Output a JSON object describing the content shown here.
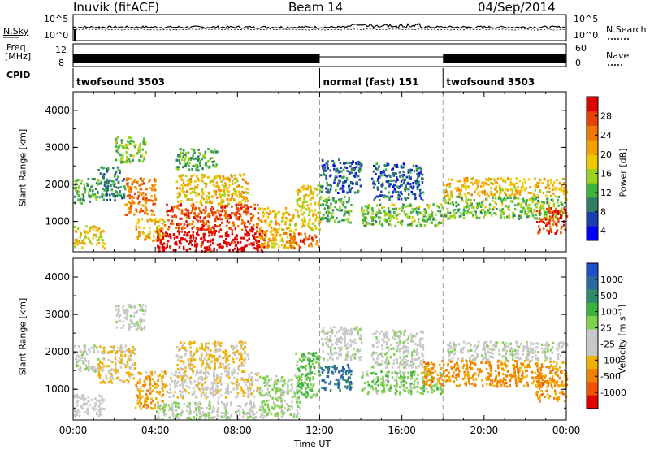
{
  "header": {
    "station": "Inuvik (fitACF)",
    "beam": "Beam 14",
    "date": "04/Sep/2014"
  },
  "noise_panel": {
    "left_label": "N.Sky",
    "right_label": "N.Search",
    "left_ticks": [
      "10^5",
      "10^0"
    ],
    "right_ticks": [
      "10^5",
      "10^0"
    ]
  },
  "freq_panel": {
    "left_label_1": "Freq.",
    "left_label_2": "[MHz]",
    "right_label": "Nave",
    "left_ticks": [
      "12",
      "8"
    ],
    "right_ticks": [
      "60",
      "0"
    ]
  },
  "cpid_panel": {
    "label": "CPID",
    "segments": [
      {
        "name": "twofsound 3503",
        "start_hr": 0,
        "end_hr": 12
      },
      {
        "name": "normal (fast) 151",
        "start_hr": 12,
        "end_hr": 18
      },
      {
        "name": "twofsound 3503",
        "start_hr": 18,
        "end_hr": 24
      }
    ]
  },
  "power_panel": {
    "ylabel": "Slant Range [km]",
    "yticks": [
      "4000",
      "3000",
      "2000",
      "1000"
    ],
    "colorbar_label": "Power [dB]",
    "colorbar_ticks": [
      "28",
      "24",
      "20",
      "16",
      "12",
      "8",
      "4"
    ],
    "colors": [
      "#0000ff",
      "#1a3fb0",
      "#2f7d65",
      "#3cb43c",
      "#9bd21e",
      "#f0c800",
      "#f5a000",
      "#f07800",
      "#e64100",
      "#e00000"
    ]
  },
  "velocity_panel": {
    "ylabel": "Slant Range [km]",
    "yticks": [
      "4000",
      "3000",
      "2000",
      "1000"
    ],
    "colorbar_label": "Velocity [m s⁻¹]",
    "colorbar_ticks": [
      "1000",
      "500",
      "100",
      "25",
      "-25",
      "-100",
      "-500",
      "-1000"
    ],
    "colors": [
      "#1e50c8",
      "#2a6aa0",
      "#2e8b6e",
      "#3cb43c",
      "#80d050",
      "#c8c8c8",
      "#c8c8c8",
      "#f0b000",
      "#f08000",
      "#f05000",
      "#e00000"
    ]
  },
  "x_axis": {
    "ticks": [
      "00:00",
      "04:00",
      "08:00",
      "12:00",
      "16:00",
      "20:00",
      "00:00"
    ],
    "label": "Time UT"
  },
  "chart_data": {
    "type": "heatmap",
    "title": "Inuvik (fitACF)  Beam 14  04/Sep/2014",
    "xlabel": "Time UT",
    "ylabel": "Slant Range [km]",
    "xlim": [
      0,
      24
    ],
    "ylim": [
      180,
      4500
    ],
    "cpid_changes_hr": [
      12,
      18
    ],
    "series": [
      {
        "name": "Power [dB]",
        "clim": [
          0,
          30
        ],
        "regions": [
          {
            "t0": 0.0,
            "t1": 1.2,
            "r0": 1500,
            "r1": 2200,
            "value": 10
          },
          {
            "t0": 0.0,
            "t1": 1.5,
            "r0": 300,
            "r1": 900,
            "value": 16
          },
          {
            "t0": 1.2,
            "t1": 2.5,
            "r0": 1600,
            "r1": 2500,
            "value": 8
          },
          {
            "t0": 2.0,
            "t1": 3.5,
            "r0": 2600,
            "r1": 3300,
            "value": 12
          },
          {
            "t0": 2.5,
            "t1": 4.0,
            "r0": 1200,
            "r1": 2200,
            "value": 22
          },
          {
            "t0": 3.0,
            "t1": 4.5,
            "r0": 500,
            "r1": 1100,
            "value": 18
          },
          {
            "t0": 4.0,
            "t1": 9.3,
            "r0": 220,
            "r1": 800,
            "value": 30
          },
          {
            "t0": 4.5,
            "t1": 9.0,
            "r0": 800,
            "r1": 1500,
            "value": 25
          },
          {
            "t0": 5.0,
            "t1": 8.5,
            "r0": 1500,
            "r1": 2300,
            "value": 18
          },
          {
            "t0": 5.0,
            "t1": 7.0,
            "r0": 2400,
            "r1": 3000,
            "value": 10
          },
          {
            "t0": 9.0,
            "t1": 10.8,
            "r0": 300,
            "r1": 1400,
            "value": 18
          },
          {
            "t0": 10.5,
            "t1": 12.0,
            "r0": 300,
            "r1": 700,
            "value": 24
          },
          {
            "t0": 10.8,
            "t1": 12.0,
            "r0": 800,
            "r1": 2000,
            "value": 16
          },
          {
            "t0": 12.0,
            "t1": 13.5,
            "r0": 1000,
            "r1": 1700,
            "value": 10
          },
          {
            "t0": 12.0,
            "t1": 14.0,
            "r0": 1800,
            "r1": 2700,
            "value": 6
          },
          {
            "t0": 14.0,
            "t1": 18.0,
            "r0": 900,
            "r1": 1500,
            "value": 12
          },
          {
            "t0": 14.5,
            "t1": 17.0,
            "r0": 1600,
            "r1": 2600,
            "value": 6
          },
          {
            "t0": 18.0,
            "t1": 24.0,
            "r0": 1100,
            "r1": 1700,
            "value": 12
          },
          {
            "t0": 18.0,
            "t1": 24.0,
            "r0": 1700,
            "r1": 2200,
            "value": 18
          },
          {
            "t0": 22.5,
            "t1": 24.0,
            "r0": 700,
            "r1": 1400,
            "value": 26
          }
        ]
      },
      {
        "name": "Velocity [m s^-1]",
        "clim": [
          -1000,
          1000
        ],
        "regions": [
          {
            "t0": 0.0,
            "t1": 1.5,
            "r0": 300,
            "r1": 900,
            "value": -100
          },
          {
            "t0": 0.0,
            "t1": 1.2,
            "r0": 1500,
            "r1": 2200,
            "value": 0
          },
          {
            "t0": 1.2,
            "t1": 3.0,
            "r0": 1200,
            "r1": 2200,
            "value": -300
          },
          {
            "t0": 2.0,
            "t1": 3.5,
            "r0": 2600,
            "r1": 3300,
            "value": 0
          },
          {
            "t0": 3.0,
            "t1": 4.5,
            "r0": 500,
            "r1": 1500,
            "value": -400
          },
          {
            "t0": 4.0,
            "t1": 9.3,
            "r0": 220,
            "r1": 700,
            "value": 60
          },
          {
            "t0": 4.5,
            "t1": 9.0,
            "r0": 800,
            "r1": 1500,
            "value": -200
          },
          {
            "t0": 5.0,
            "t1": 8.5,
            "r0": 1500,
            "r1": 2300,
            "value": -300
          },
          {
            "t0": 9.0,
            "t1": 11.0,
            "r0": 300,
            "r1": 1400,
            "value": 120
          },
          {
            "t0": 10.8,
            "t1": 12.0,
            "r0": 800,
            "r1": 2000,
            "value": 300
          },
          {
            "t0": 12.0,
            "t1": 13.5,
            "r0": 1000,
            "r1": 1700,
            "value": 700
          },
          {
            "t0": 12.0,
            "t1": 14.0,
            "r0": 1800,
            "r1": 2700,
            "value": 0
          },
          {
            "t0": 14.0,
            "t1": 18.0,
            "r0": 900,
            "r1": 1500,
            "value": 200
          },
          {
            "t0": 14.5,
            "t1": 17.0,
            "r0": 1600,
            "r1": 2600,
            "value": 0
          },
          {
            "t0": 17.0,
            "t1": 24.0,
            "r0": 1100,
            "r1": 1800,
            "value": -500
          },
          {
            "t0": 18.0,
            "t1": 24.0,
            "r0": 1800,
            "r1": 2300,
            "value": 0
          },
          {
            "t0": 22.5,
            "t1": 24.0,
            "r0": 700,
            "r1": 1400,
            "value": -500
          }
        ]
      }
    ]
  }
}
